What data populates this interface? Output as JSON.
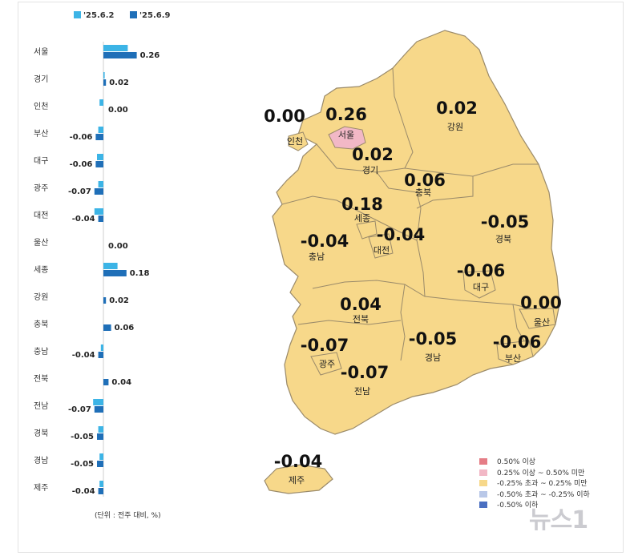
{
  "chart_data": {
    "type": "bar",
    "orientation": "horizontal",
    "series": [
      {
        "name": "'25.6.2",
        "color": "#3cb4e6"
      },
      {
        "name": "'25.6.9",
        "color": "#1f6fb8"
      }
    ],
    "categories": [
      "서울",
      "경기",
      "인천",
      "부산",
      "대구",
      "광주",
      "대전",
      "울산",
      "세종",
      "강원",
      "충북",
      "충남",
      "전북",
      "전남",
      "경북",
      "경남",
      "제주"
    ],
    "values_prev": [
      0.19,
      0.01,
      -0.03,
      -0.04,
      -0.05,
      -0.04,
      -0.07,
      0.0,
      0.11,
      0.0,
      0.0,
      -0.02,
      0.0,
      -0.08,
      -0.04,
      -0.03,
      -0.03
    ],
    "values_curr": [
      0.26,
      0.02,
      0.0,
      -0.06,
      -0.06,
      -0.07,
      -0.04,
      0.0,
      0.18,
      0.02,
      0.06,
      -0.04,
      0.04,
      -0.07,
      -0.05,
      -0.05,
      -0.04
    ],
    "value_labels": [
      "0.26",
      "0.02",
      "0.00",
      "-0.06",
      "-0.06",
      "-0.07",
      "-0.04",
      "0.00",
      "0.18",
      "0.02",
      "0.06",
      "-0.04",
      "0.04",
      "-0.07",
      "-0.05",
      "-0.05",
      "-0.04"
    ],
    "unit_note": "(단위 : 전주 대비, %)"
  },
  "map": {
    "regions": [
      {
        "name": "서울",
        "value": "0.26",
        "color": "#f2b8c6"
      },
      {
        "name": "인천",
        "value": "0.00",
        "color": "#f7d88a"
      },
      {
        "name": "경기",
        "value": "0.02",
        "color": "#f7d88a"
      },
      {
        "name": "강원",
        "value": "0.02",
        "color": "#f7d88a"
      },
      {
        "name": "충북",
        "value": "0.06",
        "color": "#f7d88a"
      },
      {
        "name": "세종",
        "value": "0.18",
        "color": "#f7d88a"
      },
      {
        "name": "충남",
        "value": "-0.04",
        "color": "#f7d88a"
      },
      {
        "name": "대전",
        "value": "-0.04",
        "color": "#f7d88a"
      },
      {
        "name": "경북",
        "value": "-0.05",
        "color": "#f7d88a"
      },
      {
        "name": "대구",
        "value": "-0.06",
        "color": "#f7d88a"
      },
      {
        "name": "전북",
        "value": "0.04",
        "color": "#f7d88a"
      },
      {
        "name": "울산",
        "value": "0.00",
        "color": "#f7d88a"
      },
      {
        "name": "광주",
        "value": "-0.07",
        "color": "#f7d88a"
      },
      {
        "name": "경남",
        "value": "-0.05",
        "color": "#f7d88a"
      },
      {
        "name": "부산",
        "value": "-0.06",
        "color": "#f7d88a"
      },
      {
        "name": "전남",
        "value": "-0.07",
        "color": "#f7d88a"
      },
      {
        "name": "제주",
        "value": "-0.04",
        "color": "#f7d88a"
      }
    ],
    "legend": [
      {
        "label": "0.50% 이상",
        "color": "#e57d86"
      },
      {
        "label": "0.25% 이상 ~ 0.50% 미만",
        "color": "#f2b8c6"
      },
      {
        "label": "-0.25% 초과 ~ 0.25% 미만",
        "color": "#f7d88a"
      },
      {
        "label": "-0.50% 초과 ~ -0.25% 이하",
        "color": "#b9c8e8"
      },
      {
        "label": "-0.50% 이하",
        "color": "#4a6fc1"
      }
    ]
  },
  "watermark": "뉴스1"
}
